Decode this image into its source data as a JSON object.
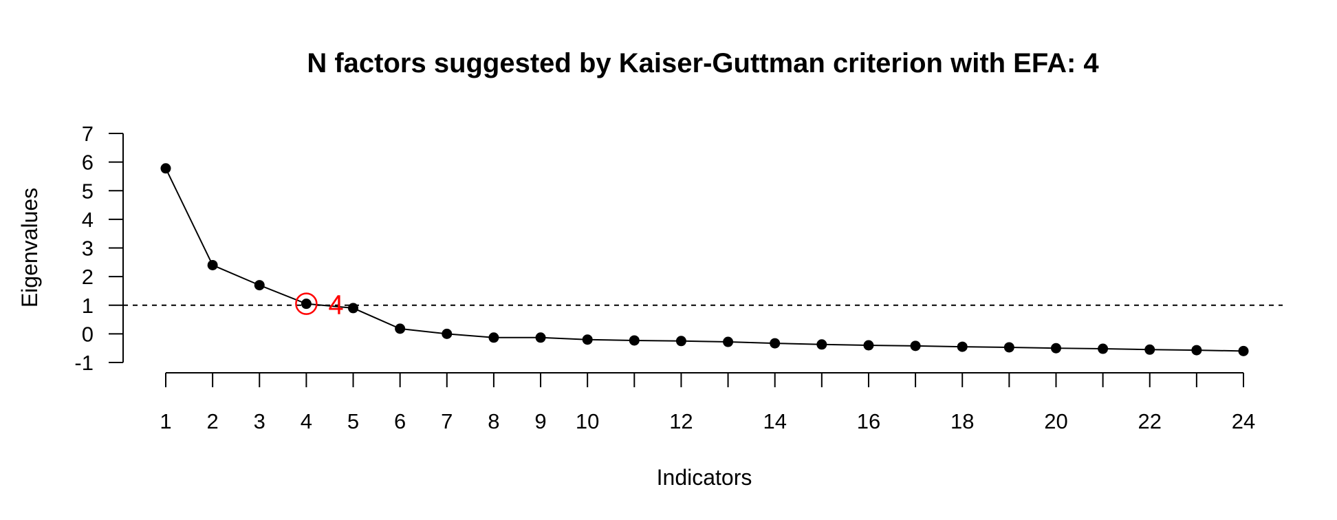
{
  "chart_data": {
    "type": "line",
    "title": "N factors suggested by Kaiser-Guttman criterion with EFA: 4",
    "xlabel": "Indicators",
    "ylabel": "Eigenvalues",
    "x": [
      1,
      2,
      3,
      4,
      5,
      6,
      7,
      8,
      9,
      10,
      11,
      12,
      13,
      14,
      15,
      16,
      17,
      18,
      19,
      20,
      21,
      22,
      23,
      24
    ],
    "series": [
      {
        "values": [
          5.78,
          2.4,
          1.7,
          1.05,
          0.9,
          0.18,
          0.0,
          -0.13,
          -0.13,
          -0.2,
          -0.23,
          -0.25,
          -0.28,
          -0.33,
          -0.37,
          -0.4,
          -0.42,
          -0.45,
          -0.47,
          -0.5,
          -0.52,
          -0.55,
          -0.57,
          -0.6
        ],
        "color": "#000000"
      }
    ],
    "xticks": [
      1,
      2,
      3,
      4,
      5,
      6,
      7,
      8,
      9,
      10,
      12,
      14,
      16,
      18,
      20,
      22,
      24
    ],
    "xtick_labels": [
      "1",
      "2",
      "3",
      "4",
      "5",
      "6",
      "7",
      "8",
      "9",
      "10",
      "12",
      "14",
      "16",
      "18",
      "20",
      "22",
      "24"
    ],
    "yticks": [
      -1,
      0,
      1,
      2,
      3,
      4,
      5,
      6,
      7
    ],
    "ytick_labels": [
      "-1",
      "0",
      "1",
      "2",
      "3",
      "4",
      "5",
      "6",
      "7"
    ],
    "ylim": [
      -1,
      7
    ],
    "xlim": [
      1,
      24
    ],
    "reference_line": {
      "y": 1,
      "style": "dashed"
    },
    "highlight": {
      "x": 4,
      "label": "4",
      "color": "#ff0000"
    },
    "grid": false,
    "legend": "none"
  }
}
